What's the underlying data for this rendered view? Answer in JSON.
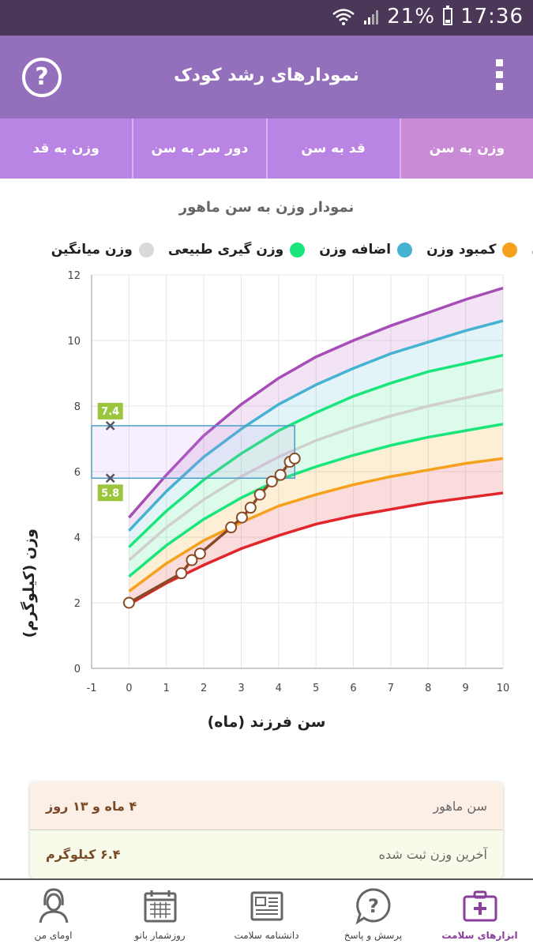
{
  "status": {
    "battery": "21%",
    "time": "17:36"
  },
  "header": {
    "title": "نمودارهای رشد کودک",
    "help_icon": "help-circle-icon",
    "menu_icon": "more-vert-icon"
  },
  "tabs": [
    {
      "label": "وزن به سن",
      "active": true
    },
    {
      "label": "قد به سن",
      "active": false
    },
    {
      "label": "دور سر به سن",
      "active": false
    },
    {
      "label": "وزن به قد",
      "active": false
    }
  ],
  "chart_title": "نمودار وزن به سن ماهور",
  "legend": [
    {
      "label": "وزن میانگین",
      "color": "#d9d9d9"
    },
    {
      "label": "وزن گیری طبیعی",
      "color": "#19e67a"
    },
    {
      "label": "اضافه وزن",
      "color": "#45b2d2"
    },
    {
      "label": "کمبود وزن",
      "color": "#f5a11b"
    },
    {
      "label": "ن",
      "color": "#a64db8"
    }
  ],
  "chart_data": {
    "type": "line",
    "xlabel": "سن فرزند (ماه)",
    "ylabel": "وزن (کیلوگرم)",
    "xlim": [
      -1,
      10
    ],
    "ylim": [
      0,
      12
    ],
    "xticks": [
      "-1",
      "0",
      "1",
      "2",
      "3",
      "4",
      "5",
      "6",
      "7",
      "8",
      "9",
      "10"
    ],
    "yticks": [
      "0",
      "2",
      "4",
      "6",
      "8",
      "10",
      "12"
    ],
    "grid": true,
    "x": [
      0,
      1,
      2,
      3,
      4,
      5,
      6,
      7,
      8,
      9,
      10
    ],
    "curves": [
      {
        "name": "purple",
        "color": "#a64db8",
        "values": [
          4.6,
          5.9,
          7.1,
          8.05,
          8.85,
          9.5,
          10.0,
          10.45,
          10.85,
          11.25,
          11.6
        ]
      },
      {
        "name": "blue",
        "color": "#45b2d2",
        "values": [
          4.2,
          5.4,
          6.45,
          7.3,
          8.05,
          8.65,
          9.15,
          9.6,
          9.95,
          10.3,
          10.6
        ]
      },
      {
        "name": "green-upper",
        "color": "#19e67a",
        "values": [
          3.7,
          4.8,
          5.75,
          6.55,
          7.25,
          7.8,
          8.3,
          8.7,
          9.05,
          9.3,
          9.55
        ]
      },
      {
        "name": "median",
        "color": "#cfcfcf",
        "values": [
          3.3,
          4.3,
          5.15,
          5.85,
          6.45,
          6.95,
          7.35,
          7.7,
          8.0,
          8.25,
          8.5
        ]
      },
      {
        "name": "green-lower",
        "color": "#19e67a",
        "values": [
          2.8,
          3.75,
          4.55,
          5.2,
          5.75,
          6.15,
          6.5,
          6.8,
          7.05,
          7.25,
          7.45
        ]
      },
      {
        "name": "orange",
        "color": "#f5a11b",
        "values": [
          2.35,
          3.2,
          3.9,
          4.45,
          4.95,
          5.3,
          5.6,
          5.85,
          6.05,
          6.25,
          6.4
        ]
      },
      {
        "name": "red",
        "color": "#e0262b",
        "values": [
          1.95,
          2.6,
          3.15,
          3.65,
          4.05,
          4.4,
          4.65,
          4.85,
          5.05,
          5.2,
          5.35
        ]
      }
    ],
    "child_measurements": {
      "x": [
        0,
        1.4,
        1.68,
        1.9,
        2.73,
        3.02,
        3.25,
        3.5,
        3.82,
        4.05,
        4.3,
        4.43
      ],
      "y": [
        2.0,
        2.9,
        3.3,
        3.5,
        4.3,
        4.6,
        4.9,
        5.3,
        5.7,
        5.9,
        6.3,
        6.4
      ]
    },
    "highlight": {
      "ymin": 5.8,
      "ymax": 7.4,
      "xmin": -1,
      "xmax": 4.43,
      "labels": [
        "7.4",
        "5.8"
      ]
    }
  },
  "summary": {
    "age_label": "سن ماهور",
    "age_value": "۴ ماه و ۱۳ روز",
    "weight_label": "آخرین وزن ثبت شده",
    "weight_value": "۶.۴ کیلوگرم"
  },
  "bottom_nav": [
    {
      "label": "ابزارهای سلامت",
      "icon": "first-aid-kit-icon",
      "active": true
    },
    {
      "label": "پرسش و پاسخ",
      "icon": "question-bubble-icon",
      "active": false
    },
    {
      "label": "دانشنامه سلامت",
      "icon": "newspaper-icon",
      "active": false
    },
    {
      "label": "روزشمار بانو",
      "icon": "calendar-icon",
      "active": false
    },
    {
      "label": "اومای من",
      "icon": "profile-woman-icon",
      "active": false
    }
  ]
}
